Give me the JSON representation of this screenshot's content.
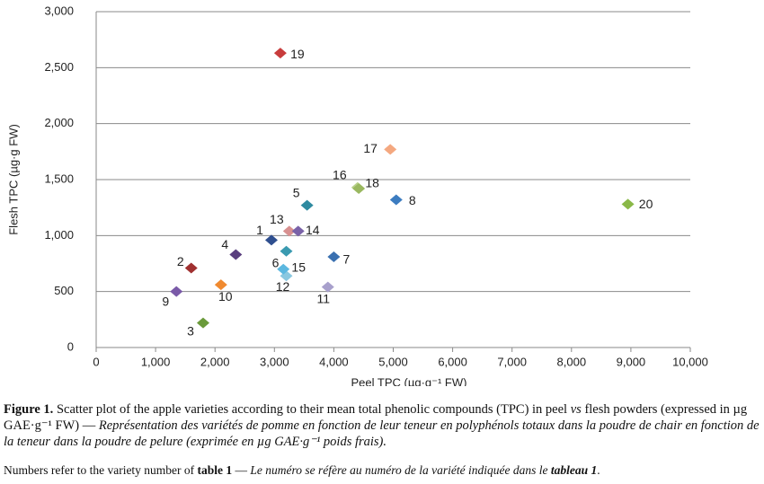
{
  "chart_data": {
    "type": "scatter",
    "x": [
      2950,
      1600,
      1800,
      2350,
      3550,
      3200,
      4000,
      5050,
      1350,
      2100,
      3900,
      3200,
      3250,
      3400,
      3150,
      4400,
      4950,
      4420,
      3100,
      8950
    ],
    "values": [
      960,
      710,
      220,
      830,
      1270,
      860,
      810,
      1320,
      500,
      560,
      540,
      640,
      1040,
      1040,
      700,
      1430,
      1770,
      1420,
      2630,
      1280
    ],
    "point_labels": [
      "1",
      "2",
      "3",
      "4",
      "5",
      "6",
      "7",
      "8",
      "9",
      "10",
      "11",
      "12",
      "13",
      "14",
      "15",
      "16",
      "17",
      "18",
      "19",
      "20"
    ],
    "colors": [
      "#2f4f8f",
      "#a03030",
      "#6a9a3a",
      "#5a3f7f",
      "#2e8aa0",
      "#3a9ab0",
      "#3a70b0",
      "#3c7cc0",
      "#7a5aa8",
      "#f08a30",
      "#a8a0cc",
      "#8ac8e0",
      "#d89090",
      "#7a62a8",
      "#5cb8e0",
      "#b8d08a",
      "#f4a880",
      "#9ab860",
      "#c83c3c",
      "#8ab848"
    ],
    "xlabel": "Peel TPC (µg·g⁻¹ FW)",
    "ylabel": "Flesh TPC (µg·g FW)",
    "xlim": [
      0,
      10000
    ],
    "ylim": [
      0,
      3000
    ],
    "xticks": [
      0,
      {
        "value": 1000,
        "label": "1,000"
      },
      {
        "value": 2000,
        "label": "2,000"
      },
      {
        "value": 3000,
        "label": "3,000"
      },
      {
        "value": 4000,
        "label": "4,000"
      },
      {
        "value": 5000,
        "label": "5,000"
      },
      {
        "value": 6000,
        "label": "6,000"
      },
      {
        "value": 7000,
        "label": "7,000"
      },
      {
        "value": 8000,
        "label": "8,000"
      },
      {
        "value": 9000,
        "label": "9,000"
      },
      {
        "value": 10000,
        "label": "10,000"
      }
    ],
    "yticks": [
      0,
      500,
      {
        "value": 1000,
        "label": "1,000"
      },
      {
        "value": 1500,
        "label": "1,500"
      },
      {
        "value": 2000,
        "label": "2,000"
      },
      {
        "value": 2500,
        "label": "2,500"
      },
      {
        "value": 3000,
        "label": "3,000"
      }
    ],
    "grid": true
  },
  "caption": [
    "Figure 1.",
    " Scatter plot of the apple varieties according to their mean total phenolic compounds (TPC) in peel ",
    "vs",
    " flesh powders (expressed in µg GAE·g⁻¹ FW) — ",
    "Représentation des variétés de pomme en fonction de leur teneur en polyphénols totaux dans la poudre de chair en fonction de la teneur dans la poudre de pelure (exprimée en µg GAE·g⁻¹ poids frais)."
  ],
  "note": [
    "Numbers refer to the variety number of ",
    "table 1",
    " — ",
    "Le numéro se réfère au numéro de la variété indiquée dans le ",
    "tableau 1",
    "."
  ]
}
